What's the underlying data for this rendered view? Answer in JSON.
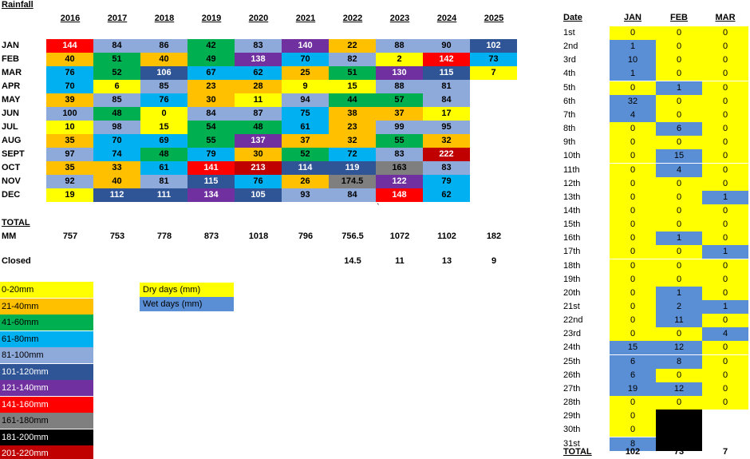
{
  "title": "Rainfall",
  "years": [
    "2016",
    "2017",
    "2018",
    "2019",
    "2020",
    "2021",
    "2022",
    "2023",
    "2024",
    "2025"
  ],
  "months": [
    "JAN",
    "FEB",
    "MAR",
    "APR",
    "MAY",
    "JUN",
    "JUL",
    "AUG",
    "SEPT",
    "OCT",
    "NOV",
    "DEC"
  ],
  "rainfall": [
    [
      "144",
      "84",
      "86",
      "42",
      "83",
      "140",
      "22",
      "88",
      "90",
      "102"
    ],
    [
      "40",
      "51",
      "40",
      "49",
      "138",
      "70",
      "82",
      "2",
      "142",
      "73"
    ],
    [
      "76",
      "52",
      "106",
      "67",
      "62",
      "25",
      "51",
      "130",
      "115",
      "7"
    ],
    [
      "70",
      "6",
      "85",
      "23",
      "28",
      "9",
      "15",
      "88",
      "81",
      ""
    ],
    [
      "39",
      "85",
      "76",
      "30",
      "11",
      "94",
      "44",
      "57",
      "84",
      ""
    ],
    [
      "100",
      "48",
      "0",
      "84",
      "87",
      "75",
      "38",
      "37",
      "17",
      ""
    ],
    [
      "10",
      "98",
      "15",
      "54",
      "48",
      "61",
      "23",
      "99",
      "95",
      ""
    ],
    [
      "35",
      "70",
      "69",
      "55",
      "137",
      "37",
      "32",
      "55",
      "32",
      ""
    ],
    [
      "97",
      "74",
      "48",
      "79",
      "30",
      "52",
      "72",
      "83",
      "222",
      ""
    ],
    [
      "35",
      "33",
      "61",
      "141",
      "213",
      "114",
      "119",
      "163",
      "83",
      ""
    ],
    [
      "92",
      "40",
      "81",
      "115",
      "76",
      "26",
      "174.5",
      "122",
      "79",
      ""
    ],
    [
      "19",
      "112",
      "111",
      "134",
      "105",
      "93",
      "84",
      "148",
      "62",
      ""
    ]
  ],
  "stray_mark": "`",
  "total_label": "TOTAL",
  "mm_label": "MM",
  "totals": [
    "757",
    "753",
    "778",
    "873",
    "1018",
    "796",
    "756.5",
    "1072",
    "1102",
    "182"
  ],
  "closed_label": "Closed",
  "closed": [
    "",
    "",
    "",
    "",
    "",
    "",
    "14.5",
    "11",
    "13",
    "9"
  ],
  "legend": [
    {
      "label": "0-20mm",
      "color": "#ffff00"
    },
    {
      "label": "21-40mm",
      "color": "#ffc000"
    },
    {
      "label": "41-60mm",
      "color": "#00b050"
    },
    {
      "label": "61-80mm",
      "color": "#00b0f0"
    },
    {
      "label": "81-100mm",
      "color": "#8eaadb"
    },
    {
      "label": "101-120mm",
      "color": "#2f5597"
    },
    {
      "label": "121-140mm",
      "color": "#7030a0"
    },
    {
      "label": "141-160mm",
      "color": "#ff0000"
    },
    {
      "label": "161-180mm",
      "color": "#7f7f7f"
    },
    {
      "label": "181-200mm",
      "color": "#000000"
    },
    {
      "label": "201-220mm",
      "color": "#c00000"
    }
  ],
  "dry_label": "Dry days   (mm)",
  "wet_label": "Wet days   (mm)",
  "dry_color": "#ffff00",
  "wet_color": "#5b8fd5",
  "daily": {
    "header_date": "Date",
    "header_months": [
      "JAN",
      "FEB",
      "MAR"
    ],
    "days": [
      "1st",
      "2nd",
      "3rd",
      "4th",
      "5th",
      "6th",
      "7th",
      "8th",
      "9th",
      "10th",
      "11th",
      "12th",
      "13th",
      "14th",
      "15th",
      "16th",
      "17th",
      "18th",
      "19th",
      "20th",
      "21st",
      "22nd",
      "23rd",
      "24th",
      "25th",
      "26th",
      "27th",
      "28th",
      "29th",
      "30th",
      "31st"
    ],
    "jan": [
      "0",
      "1",
      "10",
      "1",
      "0",
      "32",
      "4",
      "0",
      "0",
      "0",
      "0",
      "0",
      "0",
      "0",
      "0",
      "0",
      "0",
      "0",
      "0",
      "0",
      "0",
      "0",
      "0",
      "15",
      "6",
      "6",
      "19",
      "0",
      "0",
      "0",
      "8"
    ],
    "feb": [
      "0",
      "0",
      "0",
      "0",
      "1",
      "0",
      "0",
      "6",
      "0",
      "15",
      "4",
      "0",
      "0",
      "0",
      "0",
      "1",
      "0",
      "0",
      "0",
      "1",
      "2",
      "11",
      "0",
      "12",
      "8",
      "0",
      "12",
      "0",
      "",
      "",
      ""
    ],
    "mar": [
      "0",
      "0",
      "0",
      "0",
      "0",
      "0",
      "0",
      "0",
      "0",
      "0",
      "0",
      "0",
      "1",
      "0",
      "0",
      "0",
      "1",
      "0",
      "0",
      "0",
      "1",
      "0",
      "4",
      "0",
      "0",
      "0",
      "0",
      "0",
      "",
      "",
      ""
    ],
    "total_label": "TOTAL",
    "totals": [
      "102",
      "73",
      "7"
    ]
  }
}
